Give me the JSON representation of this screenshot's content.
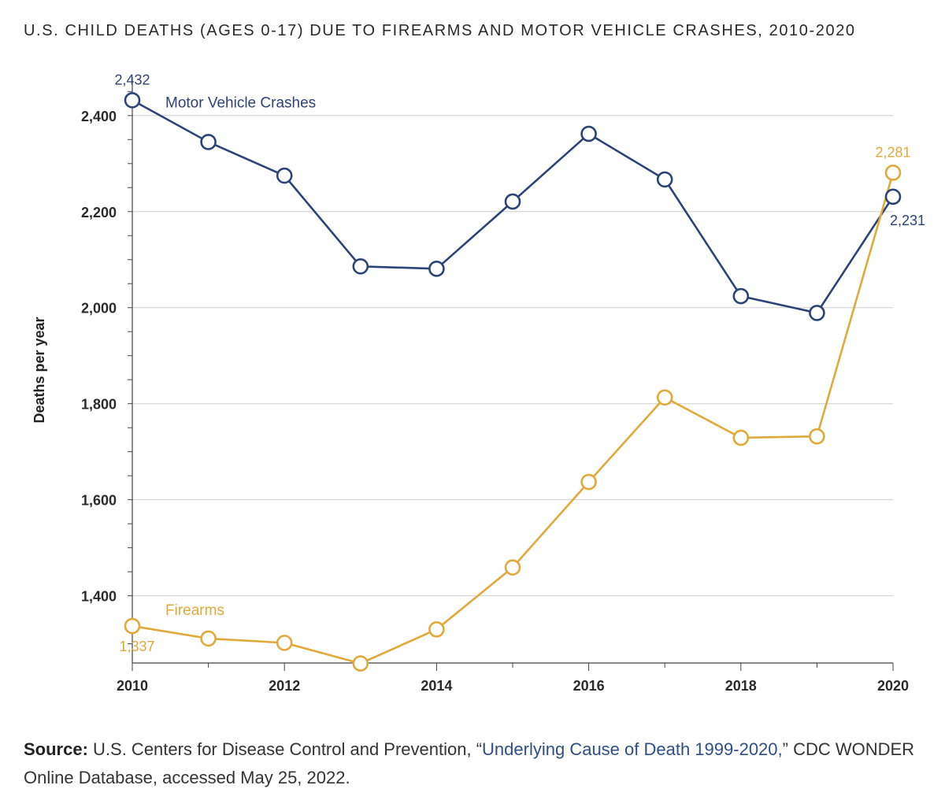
{
  "title": "U.S. CHILD DEATHS (AGES 0-17) DUE TO FIREARMS AND MOTOR VEHICLE CRASHES, 2010-2020",
  "chart_data": {
    "type": "line",
    "title": "U.S. CHILD DEATHS (AGES 0-17) DUE TO FIREARMS AND MOTOR VEHICLE CRASHES, 2010-2020",
    "xlabel": "",
    "ylabel": "Deaths per year",
    "x": [
      2010,
      2011,
      2012,
      2013,
      2014,
      2015,
      2016,
      2017,
      2018,
      2019,
      2020
    ],
    "xlim": [
      2010,
      2020
    ],
    "ylim": [
      1260,
      2480
    ],
    "x_ticks": [
      "2010",
      "2012",
      "2014",
      "2016",
      "2018",
      "2020"
    ],
    "x_tick_values": [
      2010,
      2012,
      2014,
      2016,
      2018,
      2020
    ],
    "y_ticks": [
      "1,400",
      "1,600",
      "1,800",
      "2,000",
      "2,200",
      "2,400"
    ],
    "y_tick_values": [
      1400,
      1600,
      1800,
      2000,
      2200,
      2400
    ],
    "grid": "horizontal",
    "series": [
      {
        "name": "Motor Vehicle Crashes",
        "color": "#2c4377",
        "values": [
          2432,
          2345,
          2275,
          2086,
          2081,
          2221,
          2362,
          2267,
          2024,
          1989,
          2231
        ],
        "start_label": "2,432",
        "end_label": "2,231"
      },
      {
        "name": "Firearms",
        "color": "#e0a93a",
        "values": [
          1337,
          1311,
          1302,
          1259,
          1330,
          1459,
          1637,
          1813,
          1729,
          1732,
          2281
        ],
        "start_label": "1,337",
        "end_label": "2,281"
      }
    ]
  },
  "source": {
    "prefix": "Source:",
    "text_before": " U.S. Centers for Disease Control and Prevention, “",
    "link": "Underlying Cause of Death 1999-2020,",
    "text_after": "” CDC WONDER Online Database, accessed May 25, 2022."
  }
}
